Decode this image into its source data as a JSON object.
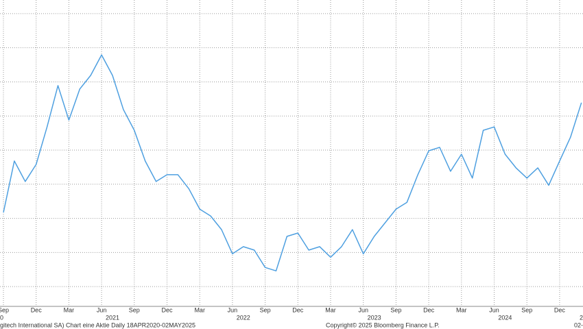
{
  "chart_data": {
    "type": "line",
    "x": [
      "2020-09",
      "2020-10",
      "2020-11",
      "2020-12",
      "2021-01",
      "2021-02",
      "2021-03",
      "2021-04",
      "2021-05",
      "2021-06",
      "2021-07",
      "2021-08",
      "2021-09",
      "2021-10",
      "2021-11",
      "2021-12",
      "2022-01",
      "2022-02",
      "2022-03",
      "2022-04",
      "2022-05",
      "2022-06",
      "2022-07",
      "2022-08",
      "2022-09",
      "2022-10",
      "2022-11",
      "2022-12",
      "2023-01",
      "2023-02",
      "2023-03",
      "2023-04",
      "2023-05",
      "2023-06",
      "2023-07",
      "2023-08",
      "2023-09",
      "2023-10",
      "2023-11",
      "2023-12",
      "2024-01",
      "2024-02",
      "2024-03",
      "2024-04",
      "2024-05",
      "2024-06",
      "2024-07",
      "2024-08",
      "2024-09",
      "2024-10",
      "2024-11",
      "2024-12",
      "2025-01",
      "2025-02"
    ],
    "series": [
      {
        "color": "#4d9fe0",
        "values": [
          2.17,
          3.68,
          3.08,
          3.58,
          4.68,
          5.89,
          4.88,
          5.79,
          6.19,
          6.79,
          6.19,
          5.19,
          4.58,
          3.68,
          3.08,
          3.28,
          3.28,
          2.87,
          2.27,
          2.07,
          1.67,
          0.96,
          1.17,
          1.07,
          0.56,
          0.46,
          1.47,
          1.57,
          1.07,
          1.17,
          0.86,
          1.17,
          1.67,
          0.96,
          1.47,
          1.87,
          2.27,
          2.47,
          3.28,
          3.98,
          4.08,
          3.38,
          3.88,
          3.18,
          4.58,
          4.68,
          3.88,
          3.48,
          3.18,
          3.48,
          2.97,
          3.68,
          4.38,
          5.39
        ]
      }
    ],
    "xticks": [
      {
        "value": "2020-09",
        "label": "Sep"
      },
      {
        "value": "2020-12",
        "label": "Dec"
      },
      {
        "value": "2021-03",
        "label": "Mar"
      },
      {
        "value": "2021-06",
        "label": "Jun"
      },
      {
        "value": "2021-09",
        "label": "Sep"
      },
      {
        "value": "2021-12",
        "label": "Dec"
      },
      {
        "value": "2022-03",
        "label": "Mar"
      },
      {
        "value": "2022-06",
        "label": "Jun"
      },
      {
        "value": "2022-09",
        "label": "Sep"
      },
      {
        "value": "2022-12",
        "label": "Dec"
      },
      {
        "value": "2023-03",
        "label": "Mar"
      },
      {
        "value": "2023-06",
        "label": "Jun"
      },
      {
        "value": "2023-09",
        "label": "Sep"
      },
      {
        "value": "2023-12",
        "label": "Dec"
      },
      {
        "value": "2024-03",
        "label": "Mar"
      },
      {
        "value": "2024-06",
        "label": "Jun"
      },
      {
        "value": "2024-09",
        "label": "Sep"
      },
      {
        "value": "2024-12",
        "label": "Dec"
      }
    ],
    "year_labels": [
      {
        "value": "2020-07",
        "label": "0"
      },
      {
        "value": "2021-07",
        "label": "2021"
      },
      {
        "value": "2022-07",
        "label": "2022"
      },
      {
        "value": "2023-07",
        "label": "2023"
      },
      {
        "value": "2024-07",
        "label": "2024"
      },
      {
        "value": "2025-07",
        "label": "2"
      }
    ],
    "ylim": [
      -0.54,
      8.4
    ],
    "yticks": [
      0,
      1,
      2,
      3,
      4,
      5,
      6,
      7,
      8
    ],
    "grid": true,
    "footer_left": "gitech International SA) Chart eine Aktie  Daily 18APR2020-02MAY2025",
    "footer_center": "Copyright© 2025 Bloomberg Finance L.P.",
    "footer_right": "02-"
  }
}
